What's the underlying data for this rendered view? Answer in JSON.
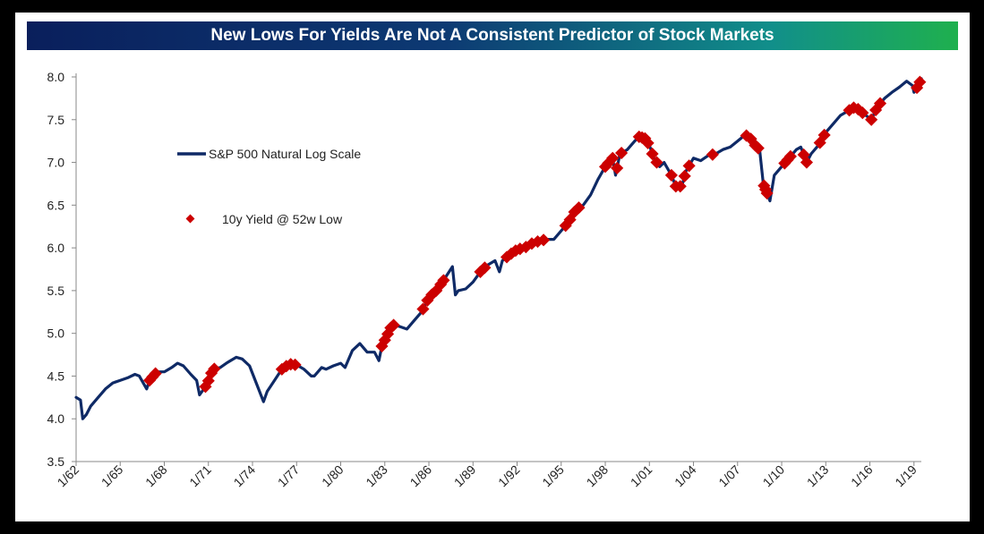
{
  "chart_data": {
    "type": "line",
    "title": "New Lows For Yields Are Not A Consistent Predictor of Stock Markets",
    "xlabel": "",
    "ylabel": "",
    "ylim": [
      3.5,
      8.0
    ],
    "yticks": [
      "3.5",
      "4.0",
      "4.5",
      "5.0",
      "5.5",
      "6.0",
      "6.5",
      "7.0",
      "7.5",
      "8.0"
    ],
    "xlim": [
      1962.0,
      2019.5
    ],
    "xticks": [
      {
        "label": "1/62",
        "year": 1962
      },
      {
        "label": "1/65",
        "year": 1965
      },
      {
        "label": "1/68",
        "year": 1968
      },
      {
        "label": "1/71",
        "year": 1971
      },
      {
        "label": "1/74",
        "year": 1974
      },
      {
        "label": "1/77",
        "year": 1977
      },
      {
        "label": "1/80",
        "year": 1980
      },
      {
        "label": "1/83",
        "year": 1983
      },
      {
        "label": "1/86",
        "year": 1986
      },
      {
        "label": "1/89",
        "year": 1989
      },
      {
        "label": "1/92",
        "year": 1992
      },
      {
        "label": "1/95",
        "year": 1995
      },
      {
        "label": "1/98",
        "year": 1998
      },
      {
        "label": "1/01",
        "year": 2001
      },
      {
        "label": "1/04",
        "year": 2004
      },
      {
        "label": "1/07",
        "year": 2007
      },
      {
        "label": "1/10",
        "year": 2010
      },
      {
        "label": "1/13",
        "year": 2013
      },
      {
        "label": "1/16",
        "year": 2016
      },
      {
        "label": "1/19",
        "year": 2019
      }
    ],
    "grid": false,
    "legend_position": "upper-left",
    "series": [
      {
        "name": "S&P 500 Natural Log Scale",
        "kind": "line",
        "color": "#0f2a66",
        "x": [
          1962.0,
          1962.3,
          1962.45,
          1962.7,
          1963.0,
          1963.5,
          1964.0,
          1964.5,
          1965.0,
          1965.5,
          1966.0,
          1966.3,
          1966.8,
          1967.0,
          1967.5,
          1968.0,
          1968.5,
          1968.9,
          1969.3,
          1969.8,
          1970.2,
          1970.4,
          1970.9,
          1971.3,
          1971.8,
          1972.3,
          1972.9,
          1973.3,
          1973.8,
          1974.3,
          1974.75,
          1975.0,
          1975.5,
          1976.0,
          1976.5,
          1977.0,
          1977.5,
          1978.0,
          1978.2,
          1978.7,
          1979.0,
          1979.5,
          1980.0,
          1980.3,
          1980.8,
          1981.3,
          1981.8,
          1982.3,
          1982.6,
          1982.8,
          1983.0,
          1983.5,
          1984.0,
          1984.5,
          1985.0,
          1985.5,
          1986.0,
          1986.5,
          1987.0,
          1987.6,
          1987.8,
          1988.0,
          1988.5,
          1989.0,
          1989.5,
          1990.0,
          1990.5,
          1990.8,
          1991.0,
          1991.5,
          1992.0,
          1992.5,
          1993.0,
          1993.5,
          1994.0,
          1994.5,
          1995.0,
          1995.5,
          1996.0,
          1996.5,
          1997.0,
          1997.5,
          1998.0,
          1998.5,
          1998.7,
          1999.0,
          1999.5,
          2000.0,
          2000.3,
          2000.7,
          2001.0,
          2001.3,
          2001.7,
          2002.0,
          2002.5,
          2002.8,
          2003.2,
          2003.5,
          2004.0,
          2004.5,
          2005.0,
          2005.5,
          2006.0,
          2006.5,
          2007.0,
          2007.5,
          2007.8,
          2008.2,
          2008.5,
          2008.75,
          2009.2,
          2009.5,
          2010.0,
          2010.5,
          2011.0,
          2011.3,
          2011.7,
          2012.0,
          2012.5,
          2013.0,
          2013.5,
          2014.0,
          2014.5,
          2015.0,
          2015.5,
          2016.1,
          2016.5,
          2017.0,
          2017.5,
          2018.0,
          2018.5,
          2018.9,
          2019.0,
          2019.3,
          2019.5
        ],
        "y": [
          4.25,
          4.22,
          4.0,
          4.05,
          4.15,
          4.25,
          4.35,
          4.42,
          4.45,
          4.48,
          4.52,
          4.5,
          4.35,
          4.45,
          4.55,
          4.55,
          4.6,
          4.65,
          4.62,
          4.52,
          4.45,
          4.28,
          4.4,
          4.58,
          4.6,
          4.66,
          4.72,
          4.7,
          4.62,
          4.4,
          4.2,
          4.32,
          4.45,
          4.58,
          4.64,
          4.63,
          4.58,
          4.5,
          4.5,
          4.6,
          4.58,
          4.62,
          4.65,
          4.6,
          4.8,
          4.88,
          4.78,
          4.78,
          4.68,
          4.85,
          4.92,
          5.1,
          5.08,
          5.05,
          5.15,
          5.25,
          5.42,
          5.5,
          5.62,
          5.78,
          5.45,
          5.5,
          5.52,
          5.6,
          5.72,
          5.8,
          5.85,
          5.72,
          5.85,
          5.92,
          5.98,
          6.0,
          6.05,
          6.08,
          6.1,
          6.1,
          6.2,
          6.3,
          6.45,
          6.5,
          6.62,
          6.8,
          6.95,
          7.05,
          6.85,
          7.1,
          7.15,
          7.25,
          7.3,
          7.28,
          7.2,
          7.05,
          6.95,
          7.0,
          6.85,
          6.72,
          6.72,
          6.9,
          7.05,
          7.02,
          7.08,
          7.1,
          7.15,
          7.18,
          7.25,
          7.32,
          7.3,
          7.2,
          7.15,
          6.75,
          6.55,
          6.85,
          6.95,
          7.05,
          7.15,
          7.18,
          7.0,
          7.1,
          7.2,
          7.35,
          7.45,
          7.55,
          7.6,
          7.65,
          7.58,
          7.5,
          7.65,
          7.75,
          7.82,
          7.88,
          7.95,
          7.9,
          7.82,
          7.9,
          7.98
        ]
      },
      {
        "name": "10y Yield @ 52w Low",
        "kind": "markers",
        "color": "#cc0000",
        "x": [
          1967.0,
          1967.2,
          1967.4,
          1970.8,
          1971.0,
          1971.2,
          1971.4,
          1976.0,
          1976.3,
          1976.6,
          1976.9,
          1982.8,
          1983.0,
          1983.2,
          1983.4,
          1983.6,
          1985.6,
          1985.9,
          1986.2,
          1986.5,
          1986.8,
          1987.0,
          1989.5,
          1989.8,
          1991.3,
          1991.6,
          1991.9,
          1992.2,
          1992.6,
          1993.0,
          1993.4,
          1993.8,
          1995.3,
          1995.6,
          1995.9,
          1996.2,
          1998.0,
          1998.2,
          1998.5,
          1998.8,
          1999.1,
          2000.3,
          2000.5,
          2000.7,
          2000.9,
          2001.2,
          2001.5,
          2002.5,
          2002.8,
          2003.1,
          2003.4,
          2003.7,
          2005.3,
          2007.6,
          2007.9,
          2008.2,
          2008.4,
          2008.8,
          2008.9,
          2009.0,
          2010.2,
          2010.4,
          2010.6,
          2011.5,
          2011.7,
          2012.6,
          2012.9,
          2014.6,
          2014.9,
          2015.2,
          2015.5,
          2016.1,
          2016.4,
          2016.7,
          2019.2,
          2019.4
        ]
      }
    ]
  }
}
